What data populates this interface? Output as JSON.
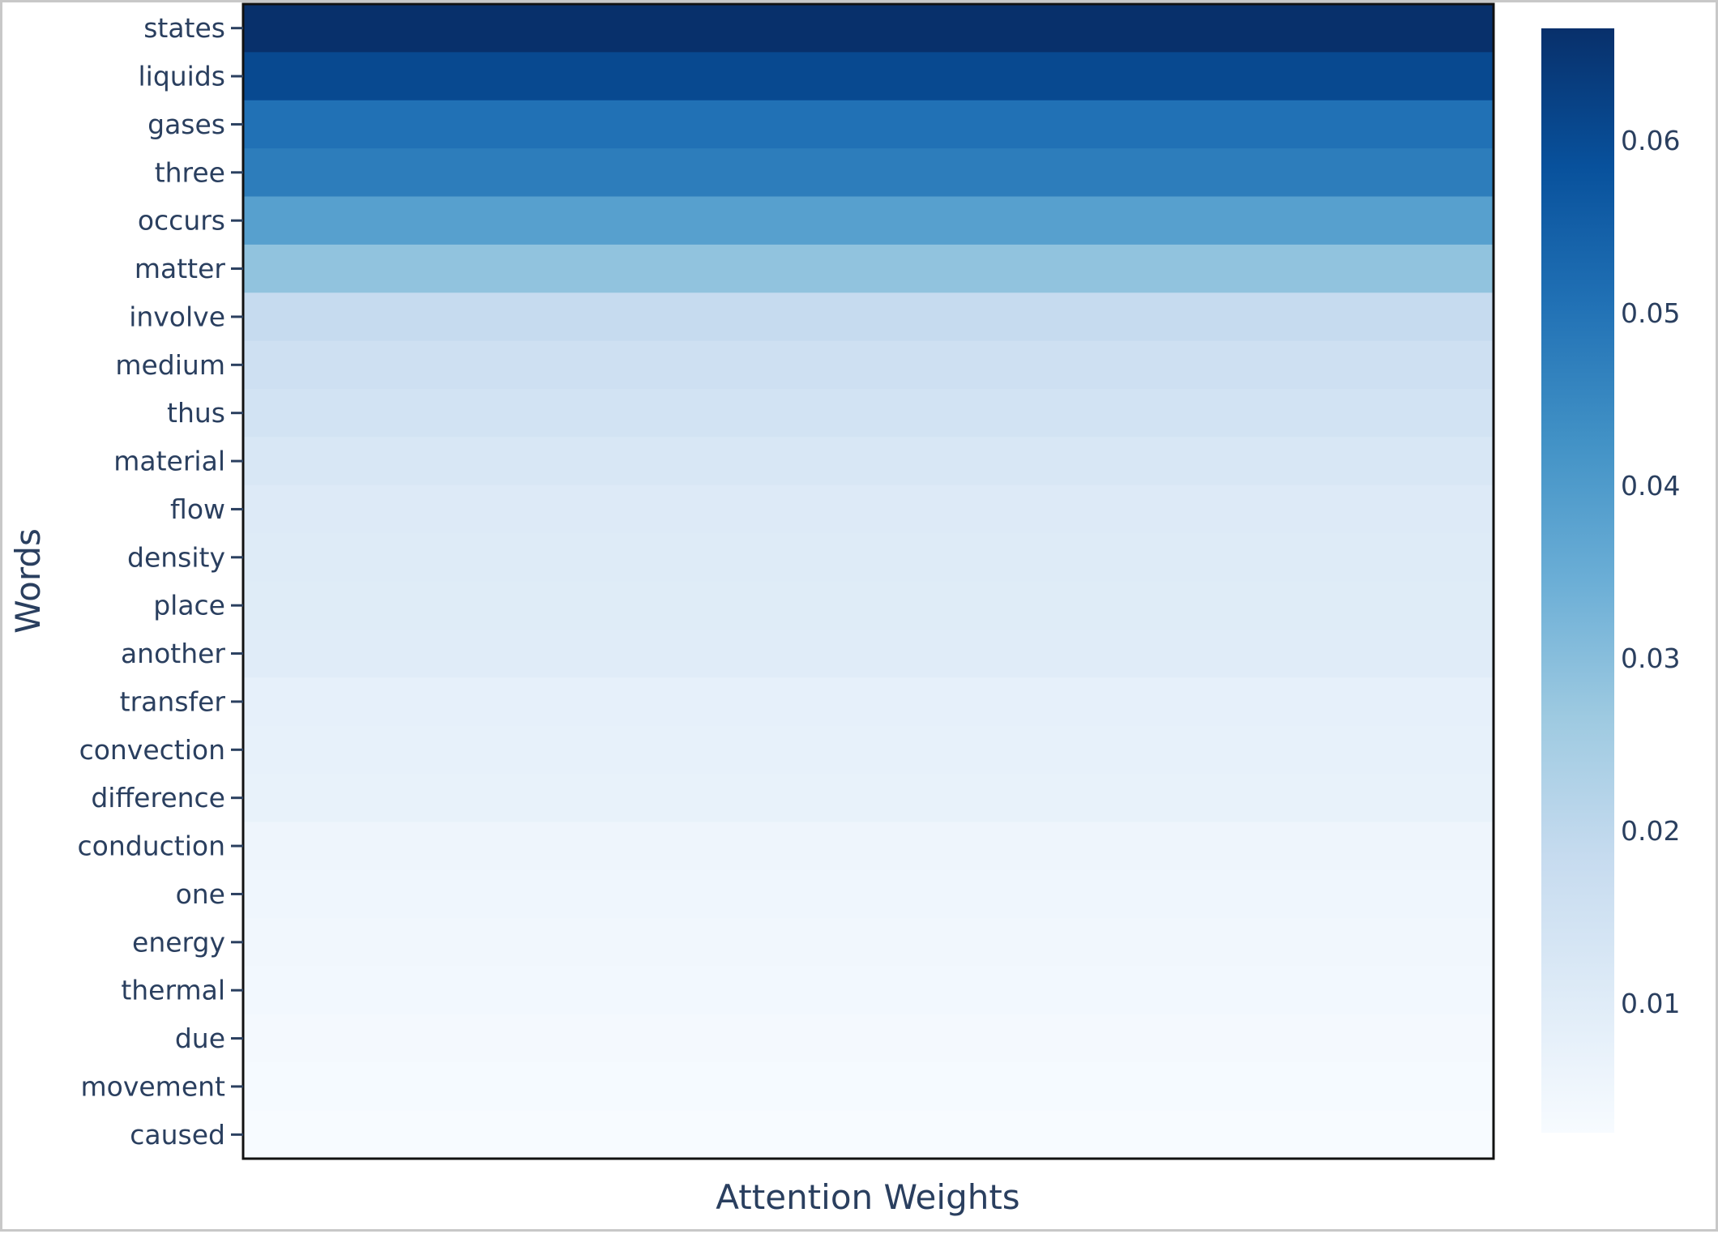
{
  "chart_data": {
    "type": "heatmap",
    "title": "",
    "xlabel": "Attention Weights",
    "ylabel": "Words",
    "rows": [
      {
        "word": "states",
        "value": 0.0665
      },
      {
        "word": "liquids",
        "value": 0.0605
      },
      {
        "word": "gases",
        "value": 0.0505
      },
      {
        "word": "three",
        "value": 0.0475
      },
      {
        "word": "occurs",
        "value": 0.0385
      },
      {
        "word": "matter",
        "value": 0.0285
      },
      {
        "word": "involve",
        "value": 0.0185
      },
      {
        "word": "medium",
        "value": 0.016
      },
      {
        "word": "thus",
        "value": 0.0145
      },
      {
        "word": "material",
        "value": 0.0125
      },
      {
        "word": "flow",
        "value": 0.0108
      },
      {
        "word": "density",
        "value": 0.0105
      },
      {
        "word": "place",
        "value": 0.0102
      },
      {
        "word": "another",
        "value": 0.01
      },
      {
        "word": "transfer",
        "value": 0.0078
      },
      {
        "word": "convection",
        "value": 0.0075
      },
      {
        "word": "difference",
        "value": 0.0072
      },
      {
        "word": "conduction",
        "value": 0.0055
      },
      {
        "word": "one",
        "value": 0.005
      },
      {
        "word": "energy",
        "value": 0.0045
      },
      {
        "word": "thermal",
        "value": 0.004
      },
      {
        "word": "due",
        "value": 0.0035
      },
      {
        "word": "movement",
        "value": 0.003
      },
      {
        "word": "caused",
        "value": 0.0025
      }
    ],
    "colorscale": {
      "name": "Blues",
      "min": 0.0025,
      "max": 0.0665,
      "low_color": "#f7fbff",
      "high_color": "#08306b",
      "ticks": [
        0.01,
        0.02,
        0.03,
        0.04,
        0.05,
        0.06
      ],
      "tick_labels": [
        "0.01",
        "0.02",
        "0.03",
        "0.04",
        "0.05",
        "0.06"
      ]
    },
    "colorbar_position": "right",
    "grid": false
  }
}
